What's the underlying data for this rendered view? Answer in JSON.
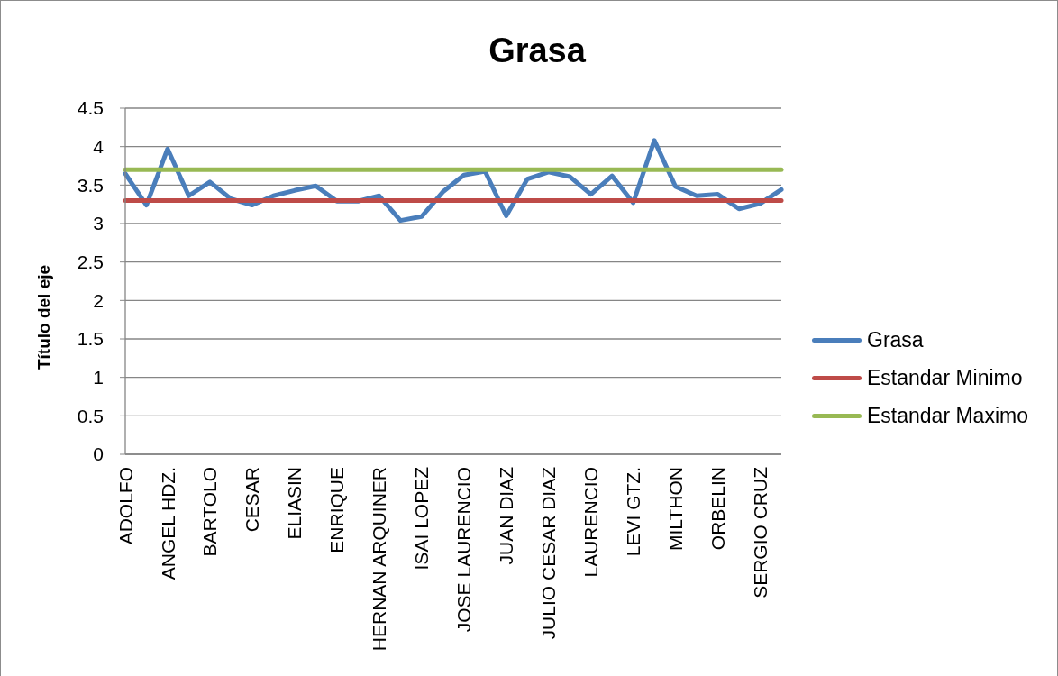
{
  "chart_data": {
    "type": "line",
    "title": "Grasa",
    "ylabel": "Título del eje",
    "categories": [
      "ADOLFO",
      null,
      "ANGEL HDZ.",
      null,
      "BARTOLO",
      null,
      "CESAR",
      null,
      "ELIASIN",
      null,
      "ENRIQUE",
      null,
      "HERNAN ARQUINER",
      null,
      "ISAI LOPEZ",
      null,
      "JOSE LAURENCIO",
      null,
      "JUAN DIAZ",
      null,
      "JULIO CESAR DIAZ",
      null,
      "LAURENCIO",
      null,
      "LEVI GTZ.",
      null,
      "MILTHON",
      null,
      "ORBELIN",
      null,
      "SERGIO CRUZ",
      null
    ],
    "series": [
      {
        "name": "Grasa",
        "color": "#4a7ebb",
        "values": [
          3.65,
          3.24,
          3.97,
          3.36,
          3.54,
          3.32,
          3.24,
          3.36,
          3.43,
          3.49,
          3.29,
          3.29,
          3.36,
          3.04,
          3.09,
          3.41,
          3.63,
          3.68,
          3.1,
          3.58,
          3.67,
          3.61,
          3.38,
          3.62,
          3.27,
          4.08,
          3.48,
          3.36,
          3.38,
          3.19,
          3.26,
          3.44
        ]
      },
      {
        "name": "Estandar Minimo",
        "color": "#be4b48",
        "values": [
          3.3,
          3.3,
          3.3,
          3.3,
          3.3,
          3.3,
          3.3,
          3.3,
          3.3,
          3.3,
          3.3,
          3.3,
          3.3,
          3.3,
          3.3,
          3.3,
          3.3,
          3.3,
          3.3,
          3.3,
          3.3,
          3.3,
          3.3,
          3.3,
          3.3,
          3.3,
          3.3,
          3.3,
          3.3,
          3.3,
          3.3,
          3.3
        ]
      },
      {
        "name": "Estandar Maximo",
        "color": "#98b954",
        "values": [
          3.7,
          3.7,
          3.7,
          3.7,
          3.7,
          3.7,
          3.7,
          3.7,
          3.7,
          3.7,
          3.7,
          3.7,
          3.7,
          3.7,
          3.7,
          3.7,
          3.7,
          3.7,
          3.7,
          3.7,
          3.7,
          3.7,
          3.7,
          3.7,
          3.7,
          3.7,
          3.7,
          3.7,
          3.7,
          3.7,
          3.7,
          3.7
        ]
      }
    ],
    "ylim": [
      0,
      4.5
    ],
    "yticks": [
      0,
      0.5,
      1,
      1.5,
      2,
      2.5,
      3,
      3.5,
      4,
      4.5
    ],
    "grid": "y",
    "legend": "right",
    "marker": "none",
    "line_style": "solid"
  }
}
